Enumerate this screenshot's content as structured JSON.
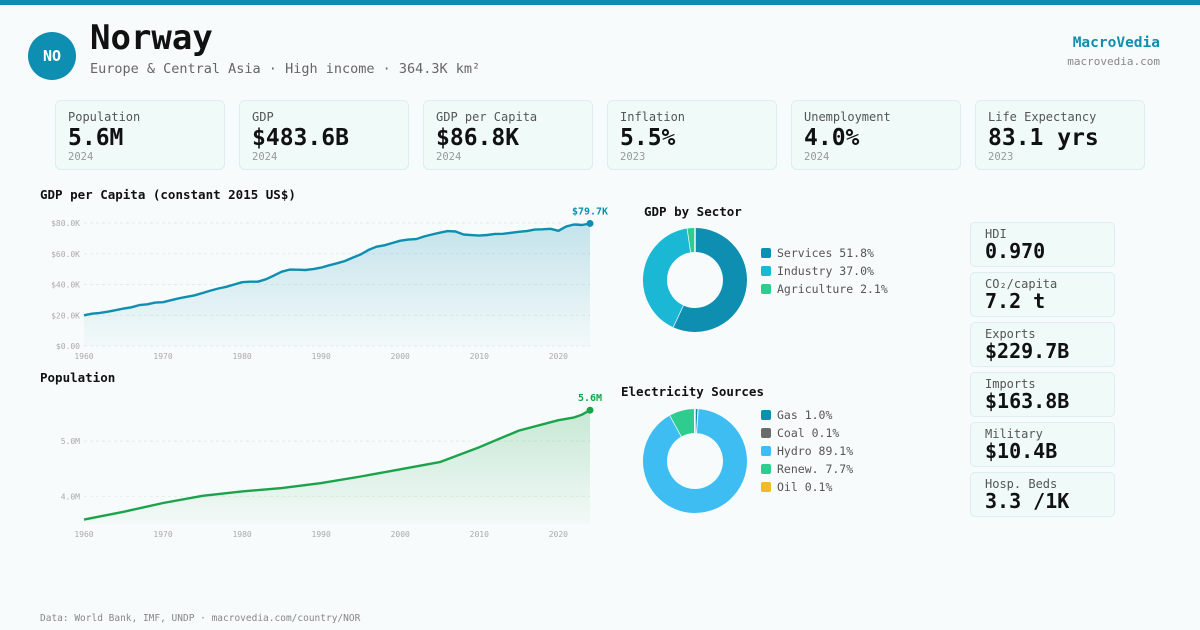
{
  "header": {
    "flag_code": "NO",
    "country": "Norway",
    "subtitle": "Europe & Central Asia · High income · 364.3K km²",
    "brand": "MacroVedia",
    "brand_url": "macrovedia.com"
  },
  "kpis": [
    {
      "label": "Population",
      "value": "5.6M",
      "year": "2024"
    },
    {
      "label": "GDP",
      "value": "$483.6B",
      "year": "2024"
    },
    {
      "label": "GDP per Capita",
      "value": "$86.8K",
      "year": "2024"
    },
    {
      "label": "Inflation",
      "value": "5.5%",
      "year": "2023"
    },
    {
      "label": "Unemployment",
      "value": "4.0%",
      "year": "2024"
    },
    {
      "label": "Life Expectancy",
      "value": "83.1 yrs",
      "year": "2023"
    }
  ],
  "side_stats": [
    {
      "label": "HDI",
      "value": "0.970"
    },
    {
      "label": "CO₂/capita",
      "value": "7.2 t"
    },
    {
      "label": "Exports",
      "value": "$229.7B"
    },
    {
      "label": "Imports",
      "value": "$163.8B"
    },
    {
      "label": "Military",
      "value": "$10.4B"
    },
    {
      "label": "Hosp. Beds",
      "value": "3.3 /1K"
    }
  ],
  "footer": "Data: World Bank, IMF, UNDP · macrovedia.com/country/NOR",
  "colors": {
    "accent": "#0e8eb0",
    "green": "#1aa34a"
  },
  "chart_data": [
    {
      "type": "area",
      "title": "GDP per Capita (constant 2015 US$)",
      "end_label": "$79.7K",
      "color": "#0e8eb0",
      "ylim": [
        0,
        80000
      ],
      "y_ticks": [
        0,
        20000,
        40000,
        60000,
        80000
      ],
      "y_tick_labels": [
        "$0.00",
        "$20.0K",
        "$40.0K",
        "$60.0K",
        "$80.0K"
      ],
      "x_ticks": [
        "1960",
        "1970",
        "1980",
        "1990",
        "2000",
        "2010",
        "2020"
      ],
      "x_start": 1960,
      "x": [
        1960,
        1961,
        1962,
        1963,
        1964,
        1965,
        1966,
        1967,
        1968,
        1969,
        1970,
        1971,
        1972,
        1973,
        1974,
        1975,
        1976,
        1977,
        1978,
        1979,
        1980,
        1981,
        1982,
        1983,
        1984,
        1985,
        1986,
        1987,
        1988,
        1989,
        1990,
        1991,
        1992,
        1993,
        1994,
        1995,
        1996,
        1997,
        1998,
        1999,
        2000,
        2001,
        2002,
        2003,
        2004,
        2005,
        2006,
        2007,
        2008,
        2009,
        2010,
        2011,
        2012,
        2013,
        2014,
        2015,
        2016,
        2017,
        2018,
        2019,
        2020,
        2021,
        2022,
        2023,
        2024
      ],
      "values": [
        20000,
        21000,
        21500,
        22300,
        23300,
        24300,
        25200,
        26600,
        27100,
        28200,
        28500,
        29800,
        31000,
        32000,
        33000,
        34500,
        36000,
        37400,
        38500,
        40000,
        41500,
        41800,
        41800,
        43400,
        45800,
        48300,
        49700,
        49600,
        49400,
        50000,
        51000,
        52500,
        53800,
        55300,
        57500,
        59600,
        62500,
        64600,
        65500,
        67000,
        68500,
        69200,
        69500,
        71200,
        72500,
        73700,
        74700,
        74500,
        72500,
        72100,
        71800,
        72200,
        72900,
        73000,
        73600,
        74300,
        74700,
        75700,
        75900,
        76200,
        74900,
        77800,
        79000,
        78700,
        79700
      ]
    },
    {
      "type": "area",
      "title": "Population",
      "end_label": "5.6M",
      "color": "#1aa34a",
      "ylim": [
        3.5,
        5.6
      ],
      "y_ticks": [
        4.0,
        5.0
      ],
      "y_tick_labels": [
        "4.0M",
        "5.0M"
      ],
      "x_ticks": [
        "1960",
        "1970",
        "1980",
        "1990",
        "2000",
        "2010",
        "2020"
      ],
      "x_start": 1960,
      "x": [
        1960,
        1965,
        1970,
        1975,
        1980,
        1985,
        1990,
        1995,
        2000,
        2005,
        2010,
        2015,
        2020,
        2022,
        2023,
        2024
      ],
      "values": [
        3.58,
        3.72,
        3.88,
        4.01,
        4.09,
        4.15,
        4.24,
        4.36,
        4.49,
        4.62,
        4.89,
        5.19,
        5.38,
        5.43,
        5.48,
        5.56
      ]
    },
    {
      "type": "pie",
      "title": "GDP by Sector",
      "labels": [
        "Services",
        "Industry",
        "Agriculture"
      ],
      "legend_labels": [
        "Services 51.8%",
        "Industry 37.0%",
        "Agriculture 2.1%"
      ],
      "values": [
        51.8,
        37.0,
        2.1
      ],
      "colors": [
        "#0e8eb0",
        "#1ab8d4",
        "#2ecc8f"
      ]
    },
    {
      "type": "pie",
      "title": "Electricity Sources",
      "labels": [
        "Gas",
        "Coal",
        "Hydro",
        "Renew.",
        "Oil"
      ],
      "legend_labels": [
        "Gas 1.0%",
        "Coal 0.1%",
        "Hydro 89.1%",
        "Renew. 7.7%",
        "Oil 0.1%"
      ],
      "values": [
        1.0,
        0.1,
        89.1,
        7.7,
        0.1
      ],
      "colors": [
        "#0e8eb0",
        "#6b6b6b",
        "#3dbdf2",
        "#2ecc8f",
        "#f5b82a"
      ]
    }
  ]
}
